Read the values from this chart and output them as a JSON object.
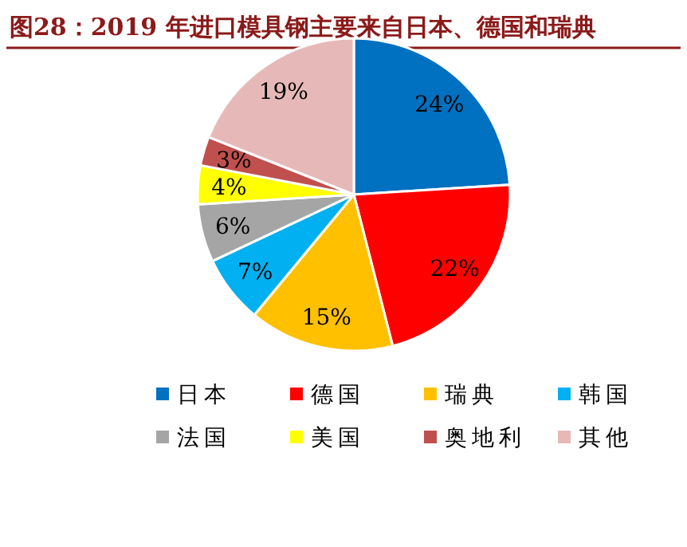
{
  "chart_data": {
    "type": "pie",
    "title": "图28：2019 年进口模具钢主要来自日本、德国和瑞典",
    "categories": [
      "日本",
      "德国",
      "瑞典",
      "韩国",
      "法国",
      "美国",
      "奥地利",
      "其他"
    ],
    "values": [
      24,
      22,
      15,
      7,
      6,
      4,
      3,
      19
    ],
    "value_labels": [
      "24%",
      "22%",
      "15%",
      "7%",
      "6%",
      "4%",
      "3%",
      "19%"
    ],
    "colors": [
      "#0070c0",
      "#ff0000",
      "#ffc000",
      "#00b0f0",
      "#a5a5a5",
      "#ffff00",
      "#c0504d",
      "#e6b9b8"
    ],
    "legend": "bottom"
  }
}
